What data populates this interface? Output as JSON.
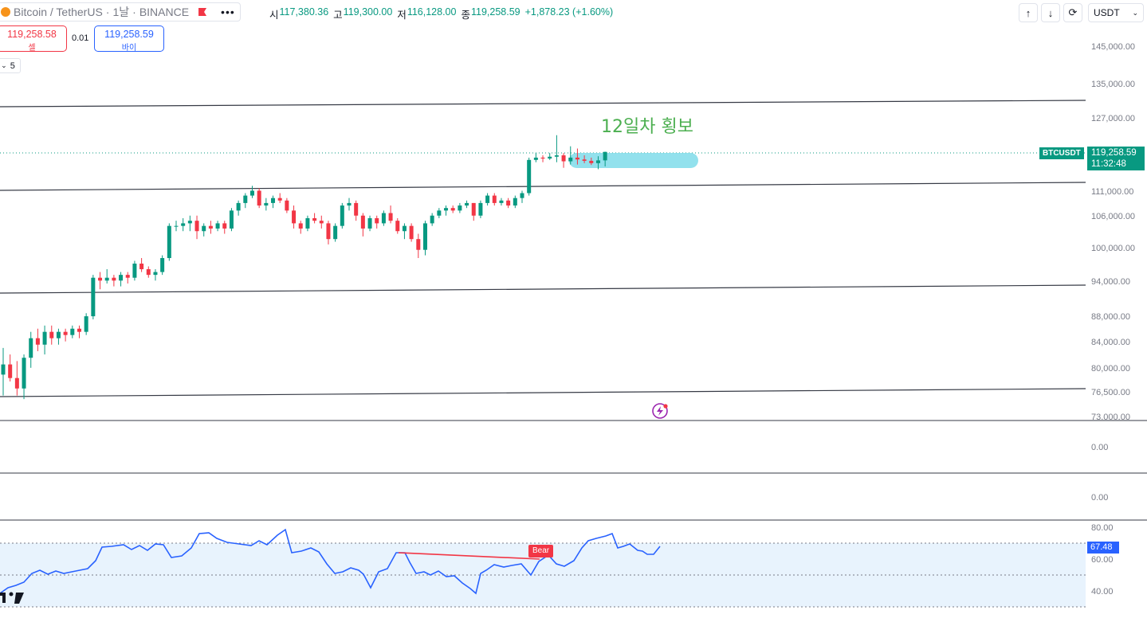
{
  "header": {
    "symbol_title": "Bitcoin / TetherUS",
    "interval": "1날",
    "exchange": "BINANCE",
    "ohlc": [
      {
        "label": "시",
        "value": "117,380.36"
      },
      {
        "label": "고",
        "value": "119,300.00"
      },
      {
        "label": "저",
        "value": "116,128.00"
      },
      {
        "label": "종",
        "value": "119,258.59"
      }
    ],
    "change": "+1,878.23 (+1.60%)",
    "toolbar_icons": [
      "arrow-up-icon",
      "arrow-down-icon",
      "refresh-icon"
    ],
    "currency": "USDT"
  },
  "trade": {
    "sell_price": "119,258.58",
    "sell_label": "셀",
    "spread": "0.01",
    "buy_price": "119,258.59",
    "buy_label": "바이"
  },
  "indicator_collapse": "5",
  "price_axis": [
    "145,000.00",
    "135,000.00",
    "127,000.00",
    "111,000.00",
    "106,000.00",
    "100,000.00",
    "94,000.00",
    "88,000.00",
    "84,000.00",
    "80,000.00",
    "76,500.00",
    "73,000.00"
  ],
  "last_price_tag": {
    "symbol": "BTCUSDT",
    "price": "119,258.59",
    "countdown": "11:32:48",
    "color": "#089981"
  },
  "annotation": "12일차 횡보",
  "pane_values": [
    "0.00",
    "0.00"
  ],
  "rsi": {
    "axis": [
      "80.00",
      "60.00",
      "40.00"
    ],
    "current": "67.48",
    "divergence_label": "Bear",
    "line_color": "#2962ff",
    "divergence_color": "#f23645"
  },
  "colors": {
    "up": "#089981",
    "down": "#f23645",
    "range_highlight": "#7fdcea"
  },
  "chart_data": {
    "type": "candlestick",
    "title": "",
    "ylim": [
      73000,
      150000
    ],
    "scale": "log",
    "candles": [
      [
        79000,
        83000,
        76000,
        80500
      ],
      [
        80500,
        82000,
        78000,
        78500
      ],
      [
        78500,
        81000,
        76000,
        77000
      ],
      [
        77000,
        82000,
        75500,
        81500
      ],
      [
        81500,
        85500,
        80000,
        84500
      ],
      [
        84500,
        86000,
        82500,
        83500
      ],
      [
        83500,
        86500,
        82000,
        85500
      ],
      [
        85500,
        86500,
        83500,
        84500
      ],
      [
        84500,
        86000,
        83500,
        85500
      ],
      [
        85500,
        86000,
        84000,
        85000
      ],
      [
        85000,
        86500,
        84500,
        86000
      ],
      [
        86000,
        86500,
        84500,
        85500
      ],
      [
        85500,
        88500,
        85000,
        88000
      ],
      [
        88000,
        95000,
        87500,
        94500
      ],
      [
        94500,
        95500,
        92500,
        94000
      ],
      [
        94000,
        96000,
        93500,
        94500
      ],
      [
        94500,
        95000,
        93000,
        94000
      ],
      [
        94000,
        95500,
        93000,
        95000
      ],
      [
        95000,
        95500,
        93500,
        94500
      ],
      [
        94500,
        97500,
        94000,
        97000
      ],
      [
        97000,
        98000,
        95500,
        96000
      ],
      [
        96000,
        96500,
        94500,
        95000
      ],
      [
        95000,
        96000,
        94000,
        95500
      ],
      [
        95500,
        98500,
        95000,
        98000
      ],
      [
        98000,
        104500,
        97500,
        104000
      ],
      [
        104000,
        105000,
        103000,
        104000
      ],
      [
        104000,
        105500,
        103000,
        104500
      ],
      [
        104500,
        106000,
        103000,
        105000
      ],
      [
        105000,
        106000,
        101500,
        103000
      ],
      [
        103000,
        104500,
        102000,
        104000
      ],
      [
        104000,
        105000,
        102500,
        103500
      ],
      [
        103500,
        105000,
        103000,
        104500
      ],
      [
        104500,
        105000,
        102500,
        103500
      ],
      [
        103500,
        107500,
        103000,
        107000
      ],
      [
        107000,
        109000,
        106000,
        108500
      ],
      [
        108500,
        110500,
        107500,
        110000
      ],
      [
        110000,
        112000,
        109500,
        111000
      ],
      [
        111000,
        111500,
        107500,
        108000
      ],
      [
        108000,
        109500,
        107000,
        108500
      ],
      [
        108500,
        110000,
        107500,
        109500
      ],
      [
        109500,
        110500,
        108500,
        109000
      ],
      [
        109000,
        109500,
        106500,
        107000
      ],
      [
        107000,
        108000,
        103500,
        104500
      ],
      [
        104500,
        105000,
        102500,
        103500
      ],
      [
        103500,
        106000,
        103000,
        105500
      ],
      [
        105500,
        106500,
        104500,
        105000
      ],
      [
        105000,
        106000,
        103500,
        104500
      ],
      [
        104500,
        105000,
        100500,
        101500
      ],
      [
        101500,
        104500,
        101000,
        104000
      ],
      [
        104000,
        108500,
        103500,
        108000
      ],
      [
        108000,
        109500,
        107000,
        108500
      ],
      [
        108500,
        109000,
        105000,
        106000
      ],
      [
        106000,
        106500,
        102000,
        103500
      ],
      [
        103500,
        106000,
        103000,
        105500
      ],
      [
        105500,
        106000,
        103500,
        104500
      ],
      [
        104500,
        107000,
        104000,
        106500
      ],
      [
        106500,
        108000,
        104500,
        105000
      ],
      [
        105000,
        105500,
        102500,
        103000
      ],
      [
        103000,
        104500,
        101500,
        104000
      ],
      [
        104000,
        104500,
        101000,
        101500
      ],
      [
        101500,
        102500,
        98000,
        99500
      ],
      [
        99500,
        105000,
        98500,
        104500
      ],
      [
        104500,
        106500,
        104000,
        106000
      ],
      [
        106000,
        107500,
        105500,
        107000
      ],
      [
        107000,
        108000,
        106000,
        107500
      ],
      [
        107500,
        108000,
        106500,
        107000
      ],
      [
        107000,
        108500,
        106500,
        108000
      ],
      [
        108000,
        109000,
        107500,
        108500
      ],
      [
        108500,
        108500,
        105000,
        106000
      ],
      [
        106000,
        109000,
        105500,
        108500
      ],
      [
        108500,
        110500,
        108000,
        110000
      ],
      [
        110000,
        110500,
        108000,
        108500
      ],
      [
        108500,
        109500,
        108000,
        109000
      ],
      [
        109000,
        109500,
        107500,
        108000
      ],
      [
        108000,
        110000,
        107500,
        109500
      ],
      [
        109500,
        111000,
        108500,
        110500
      ],
      [
        110500,
        118000,
        110000,
        117500
      ],
      [
        117500,
        119000,
        117000,
        118000
      ],
      [
        118000,
        118500,
        117000,
        117800
      ],
      [
        117800,
        119000,
        117500,
        118200
      ],
      [
        118200,
        123000,
        117000,
        118500
      ],
      [
        118500,
        119000,
        115800,
        117200
      ],
      [
        117200,
        120500,
        116500,
        118000
      ],
      [
        118000,
        120000,
        116500,
        117600
      ],
      [
        117600,
        118500,
        116800,
        117300
      ],
      [
        117300,
        118000,
        116400,
        116800
      ],
      [
        116800,
        118300,
        115500,
        117400
      ],
      [
        117400,
        119300,
        116100,
        119259
      ]
    ]
  }
}
